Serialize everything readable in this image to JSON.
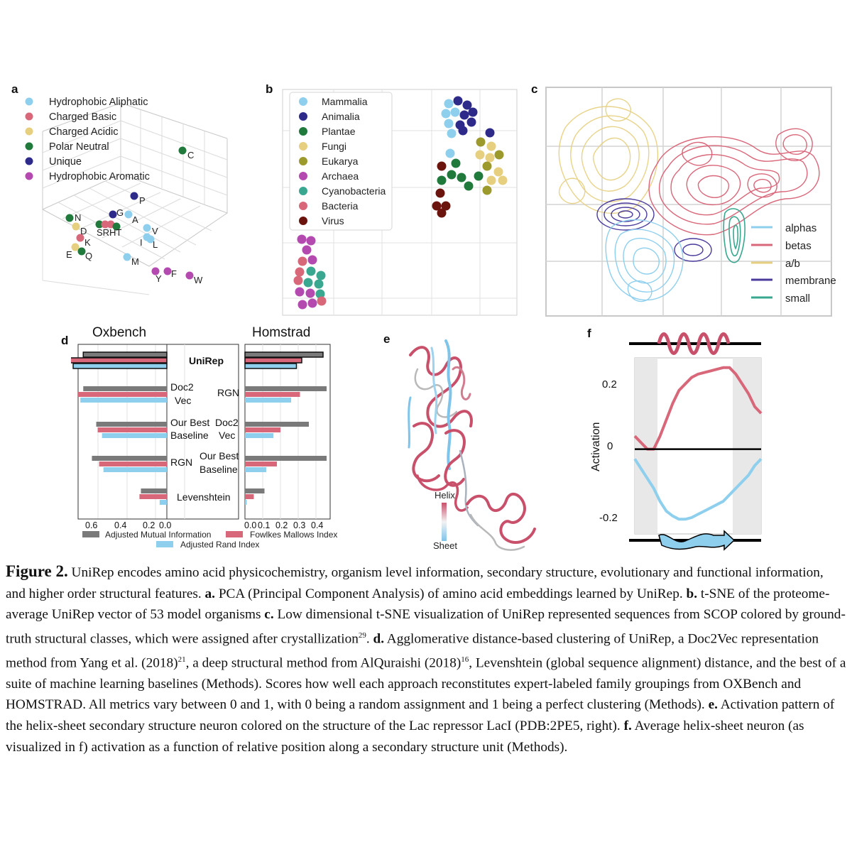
{
  "panels": {
    "a": "a",
    "b": "b",
    "c": "c",
    "d": "d",
    "e": "e",
    "f": "f"
  },
  "colors": {
    "hydrophobic_aliphatic": "#8fcfee",
    "charged_basic": "#d9677a",
    "charged_acidic": "#e6cf7e",
    "polar_neutral": "#1f7a3b",
    "unique": "#2d2a8a",
    "hydrophobic_aromatic": "#b44ab0",
    "mammalia": "#8fcfee",
    "animalia": "#2d2a8a",
    "plantae": "#1f7a3b",
    "fungi": "#e6cf7e",
    "eukarya": "#9c9a2c",
    "archaea": "#b44ab0",
    "cyanobacteria": "#3aa890",
    "bacteria": "#d9677a",
    "virus": "#6b130d",
    "alphas": "#8fcfee",
    "betas": "#d9677a",
    "ab": "#e6cf7e",
    "membrane": "#4a3a9c",
    "small": "#3aa890",
    "ami": "#7a7a7a",
    "fmi": "#d9677a",
    "ari": "#8fcfee"
  },
  "panel_a": {
    "legend": [
      "Hydrophobic Aliphatic",
      "Charged Basic",
      "Charged Acidic",
      "Polar Neutral",
      "Unique",
      "Hydrophobic Aromatic"
    ],
    "labels": {
      "C": "C",
      "P": "P",
      "G": "G",
      "A": "A",
      "N": "N",
      "D": "D",
      "K": "K",
      "SRHT": "SRHT",
      "V": "V",
      "I": "I",
      "L": "L",
      "E": "E",
      "Q": "Q",
      "M": "M",
      "Y": "Y",
      "F": "F",
      "W": "W"
    }
  },
  "panel_b": {
    "legend": [
      "Mammalia",
      "Animalia",
      "Plantae",
      "Fungi",
      "Eukarya",
      "Archaea",
      "Cyanobacteria",
      "Bacteria",
      "Virus"
    ]
  },
  "panel_c": {
    "legend": [
      "alphas",
      "betas",
      "a/b",
      "membrane",
      "small"
    ]
  },
  "panel_d": {
    "oxbench_title": "Oxbench",
    "homstrad_title": "Homstrad",
    "left_labels": [
      [
        "UniRep"
      ],
      [
        "Doc2",
        "Vec"
      ],
      [
        "Our Best",
        "Baseline"
      ],
      [
        "RGN"
      ],
      [
        "Levenshtein"
      ]
    ],
    "right_labels": [
      [
        "RGN"
      ],
      [
        "Doc2",
        "Vec"
      ],
      [
        "Our Best",
        "Baseline"
      ]
    ],
    "left_ticks": [
      "0.6",
      "0.4",
      "0.2",
      "0.0"
    ],
    "right_ticks": [
      "0.0",
      "0.1",
      "0.2",
      "0.3",
      "0.4"
    ],
    "legend": {
      "ami": "Adjusted Mutual Information",
      "fmi": "Fowlkes Mallows Index",
      "ari": "Adjusted Rand Index"
    }
  },
  "chart_data": [
    {
      "type": "bar",
      "title": "Oxbench",
      "categories": [
        "UniRep",
        "Doc2Vec",
        "Our Best Baseline",
        "RGN",
        "Levenshtein"
      ],
      "series": [
        {
          "name": "Adjusted Mutual Information",
          "values": [
            0.58,
            0.58,
            0.49,
            0.52,
            0.18
          ]
        },
        {
          "name": "Fowlkes Mallows Index",
          "values": [
            0.67,
            0.62,
            0.48,
            0.47,
            0.19
          ]
        },
        {
          "name": "Adjusted Rand Index",
          "values": [
            0.65,
            0.6,
            0.45,
            0.44,
            0.05
          ]
        }
      ],
      "xlim": [
        0,
        0.68
      ]
    },
    {
      "type": "bar",
      "title": "Homstrad",
      "categories": [
        "UniRep",
        "RGN",
        "Doc2Vec",
        "Our Best Baseline",
        "Levenshtein"
      ],
      "series": [
        {
          "name": "Adjusted Mutual Information",
          "values": [
            0.44,
            0.46,
            0.36,
            0.46,
            0.11
          ]
        },
        {
          "name": "Fowlkes Mallows Index",
          "values": [
            0.32,
            0.31,
            0.2,
            0.18,
            0.05
          ]
        },
        {
          "name": "Adjusted Rand Index",
          "values": [
            0.29,
            0.26,
            0.16,
            0.12,
            0.01
          ]
        }
      ],
      "xlim": [
        0,
        0.48
      ]
    },
    {
      "type": "line",
      "ylabel": "Activation",
      "yticks": [
        "0.2",
        "0",
        "-0.2"
      ],
      "ylim": [
        -0.26,
        0.28
      ],
      "series": [
        {
          "color": "#d9677a",
          "x": [
            0,
            0.05,
            0.1,
            0.15,
            0.2,
            0.25,
            0.3,
            0.35,
            0.4,
            0.45,
            0.5,
            0.55,
            0.6,
            0.65,
            0.7,
            0.75,
            0.8,
            0.85,
            0.9,
            0.95,
            1.0
          ],
          "values": [
            0.04,
            0.02,
            0.0,
            0.0,
            0.04,
            0.09,
            0.14,
            0.18,
            0.2,
            0.22,
            0.23,
            0.235,
            0.24,
            0.245,
            0.25,
            0.25,
            0.23,
            0.2,
            0.17,
            0.13,
            0.11
          ]
        },
        {
          "color": "#8fcfee",
          "x": [
            0,
            0.05,
            0.1,
            0.15,
            0.2,
            0.25,
            0.3,
            0.35,
            0.4,
            0.45,
            0.5,
            0.55,
            0.6,
            0.65,
            0.7,
            0.75,
            0.8,
            0.85,
            0.9,
            0.95,
            1.0
          ],
          "values": [
            -0.03,
            -0.06,
            -0.09,
            -0.12,
            -0.16,
            -0.19,
            -0.205,
            -0.215,
            -0.215,
            -0.21,
            -0.2,
            -0.19,
            -0.18,
            -0.17,
            -0.16,
            -0.14,
            -0.12,
            -0.1,
            -0.08,
            -0.05,
            -0.03
          ]
        },
        {
          "color": "#000000",
          "x": [
            0,
            1
          ],
          "values": [
            0,
            0
          ]
        }
      ]
    }
  ],
  "panel_e": {
    "helix": "Helix",
    "sheet": "Sheet"
  },
  "caption": {
    "fig": "Figure 2.",
    "s1": " UniRep encodes amino acid physicochemistry, organism level information, secondary structure, evolutionary and functional information, and higher order structural features. ",
    "a": "a.",
    "s2": " PCA (Principal Component Analysis) of amino acid embeddings learned by UniRep. ",
    "b": "b.",
    "s3": " t-SNE of the proteome-average UniRep vector of 53 model organisms ",
    "c": "c.",
    "s4": " Low dimensional t-SNE visualization of UniRep represented sequences from SCOP colored by ground-truth structural classes, which were assigned after crystallization",
    "sup29": "29",
    "s5": ". ",
    "d": "d.",
    "s6": " Agglomerative distance-based clustering of UniRep, a Doc2Vec representation method from Yang et al. (2018)",
    "sup21": "21",
    "s7": ", a deep structural method from AlQuraishi (2018)",
    "sup16": "16",
    "s8": ", Levenshtein (global sequence alignment) distance, and the best of a suite of machine learning baselines (Methods). Scores how well each approach reconstitutes expert-labeled family groupings from OXBench and HOMSTRAD. All metrics vary between 0 and 1, with 0 being a random assignment and 1 being a perfect clustering (Methods).  ",
    "e": "e.",
    "s9": " Activation pattern of the helix-sheet secondary structure neuron colored on the structure of the Lac repressor LacI (PDB:2PE5, right). ",
    "f": "f.",
    "s10": " Average helix-sheet neuron (as visualized in f) activation as a function of relative position along a secondary structure unit (Methods)."
  }
}
